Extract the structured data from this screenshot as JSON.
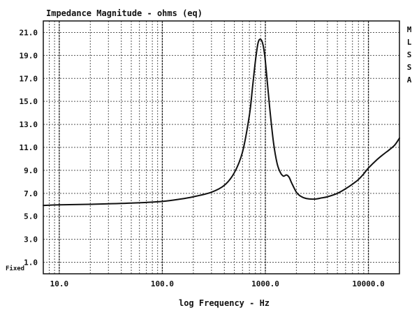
{
  "chart_data": {
    "type": "line",
    "title": "Impedance Magnitude - ohms (eq)",
    "xlabel": "log Frequency - Hz",
    "ylabel": "",
    "x_scale": "log",
    "xlim": [
      7,
      20000
    ],
    "ylim": [
      0,
      22
    ],
    "x_ticks": [
      10,
      100,
      1000,
      10000
    ],
    "x_tick_labels": [
      "10.0",
      "100.0",
      "1000.0",
      "10000.0"
    ],
    "y_ticks": [
      1,
      3,
      5,
      7,
      9,
      11,
      13,
      15,
      17,
      19,
      21
    ],
    "y_tick_labels": [
      "1.0",
      "3.0",
      "5.0",
      "7.0",
      "9.0",
      "11.0",
      "13.0",
      "15.0",
      "17.0",
      "19.0",
      "21.0"
    ],
    "grid": true,
    "side_label": [
      "M",
      "L",
      "S",
      "S",
      "A"
    ],
    "corner_label": "Fixed",
    "line_color": "#111111",
    "grid_color": "#555555",
    "series": [
      {
        "x": [
          7,
          10,
          20,
          50,
          100,
          150,
          200,
          300,
          400,
          500,
          600,
          700,
          750,
          800,
          850,
          900,
          950,
          1000,
          1100,
          1200,
          1300,
          1400,
          1500,
          1600,
          1700,
          1800,
          2000,
          2200,
          2500,
          3000,
          3500,
          4000,
          5000,
          6000,
          7000,
          8000,
          9000,
          10000,
          12000,
          14000,
          16000,
          18000,
          20000
        ],
        "y": [
          5.95,
          6.0,
          6.05,
          6.15,
          6.3,
          6.5,
          6.7,
          7.1,
          7.7,
          8.8,
          10.6,
          13.8,
          16.2,
          18.5,
          20.1,
          20.4,
          19.9,
          18.5,
          14.5,
          11.4,
          9.6,
          8.8,
          8.5,
          8.6,
          8.4,
          7.9,
          7.1,
          6.75,
          6.55,
          6.5,
          6.6,
          6.7,
          7.0,
          7.4,
          7.8,
          8.2,
          8.7,
          9.2,
          9.9,
          10.4,
          10.8,
          11.2,
          11.8
        ]
      }
    ]
  }
}
